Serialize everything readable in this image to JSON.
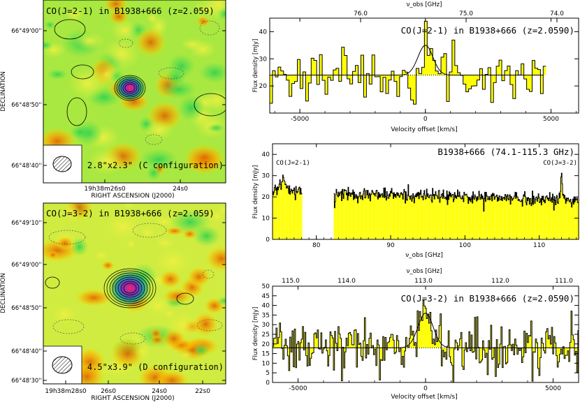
{
  "chart_data": [
    {
      "id": "map1",
      "type": "heatmap",
      "title": "CO(J=2-1) in B1938+666 (z=2.059)",
      "ylabel": "DECLINATION",
      "xlabel": "RIGHT ASCENSION (J2000)",
      "yticks": [
        "66°49'00''",
        "66°48'50''",
        "66°48'40''"
      ],
      "xticks": [
        "19h38m26s0",
        "24s0"
      ],
      "beam_label": "2.8\"x2.3\" (C configuration)"
    },
    {
      "id": "map2",
      "type": "heatmap",
      "title": "CO(J=3-2) in B1938+666 (z=2.059)",
      "ylabel": "DECLINATION",
      "xlabel": "RIGHT ASCENSION (J2000)",
      "yticks": [
        "66°49'10''",
        "66°49'00''",
        "66°48'50''",
        "66°48'40''",
        "66°48'30''"
      ],
      "xticks": [
        "19h38m28s0",
        "26s0",
        "24s0",
        "22s0"
      ],
      "beam_label": "4.5\"x3.9\" (D configuration)"
    },
    {
      "id": "spec1",
      "type": "bar",
      "title": "CO(J=2-1) in B1938+666 (z=2.0590)",
      "xlabel": "Velocity offset [km/s]",
      "ylabel": "Flux density [mJy]",
      "top_axis_label": "ν_obs [GHz]",
      "xlim": [
        -6200,
        6100
      ],
      "ylim": [
        10,
        45
      ],
      "xticks": [
        -5000,
        0,
        5000
      ],
      "yticks": [
        20,
        30,
        40
      ],
      "top_ticks": [
        "76.0",
        "75.0",
        "74.0"
      ],
      "continuum": 24,
      "line": {
        "center": 0,
        "peak": 35,
        "fwhm": 700
      }
    },
    {
      "id": "spec2",
      "type": "bar",
      "title": "B1938+666 (74.1-115.3 GHz)",
      "xlabel": "ν_obs [GHz]",
      "ylabel": "Flux density [mJy]",
      "xlim": [
        74.1,
        115.3
      ],
      "ylim": [
        0,
        45
      ],
      "xticks": [
        80,
        90,
        100,
        110
      ],
      "yticks": [
        0,
        10,
        20,
        30,
        40
      ],
      "gap": [
        78.1,
        82.3
      ],
      "line_labels": [
        {
          "text": "CO(J=2-1)",
          "at": 75.4
        },
        {
          "text": "CO(J=3-2)",
          "at": 113.0
        }
      ],
      "continuum_start": 22.5,
      "continuum_end": 18.5
    },
    {
      "id": "spec3",
      "type": "bar",
      "title": "CO(J=3-2) in B1938+666 (z=2.0590)",
      "xlabel": "Velocity offset [km/s]",
      "ylabel": "Flux density [mJy]",
      "top_axis_label": "ν_obs [GHz]",
      "xlim": [
        -6000,
        6000
      ],
      "ylim": [
        0,
        50
      ],
      "xticks": [
        -5000,
        0,
        5000
      ],
      "yticks": [
        0,
        5,
        10,
        15,
        20,
        25,
        30,
        35,
        40,
        45,
        50
      ],
      "top_ticks": [
        "115.0",
        "114.0",
        "113.0",
        "112.0",
        "111.0"
      ],
      "continuum": 18,
      "line": {
        "center": 0,
        "peak": 36,
        "fwhm": 700
      }
    }
  ]
}
